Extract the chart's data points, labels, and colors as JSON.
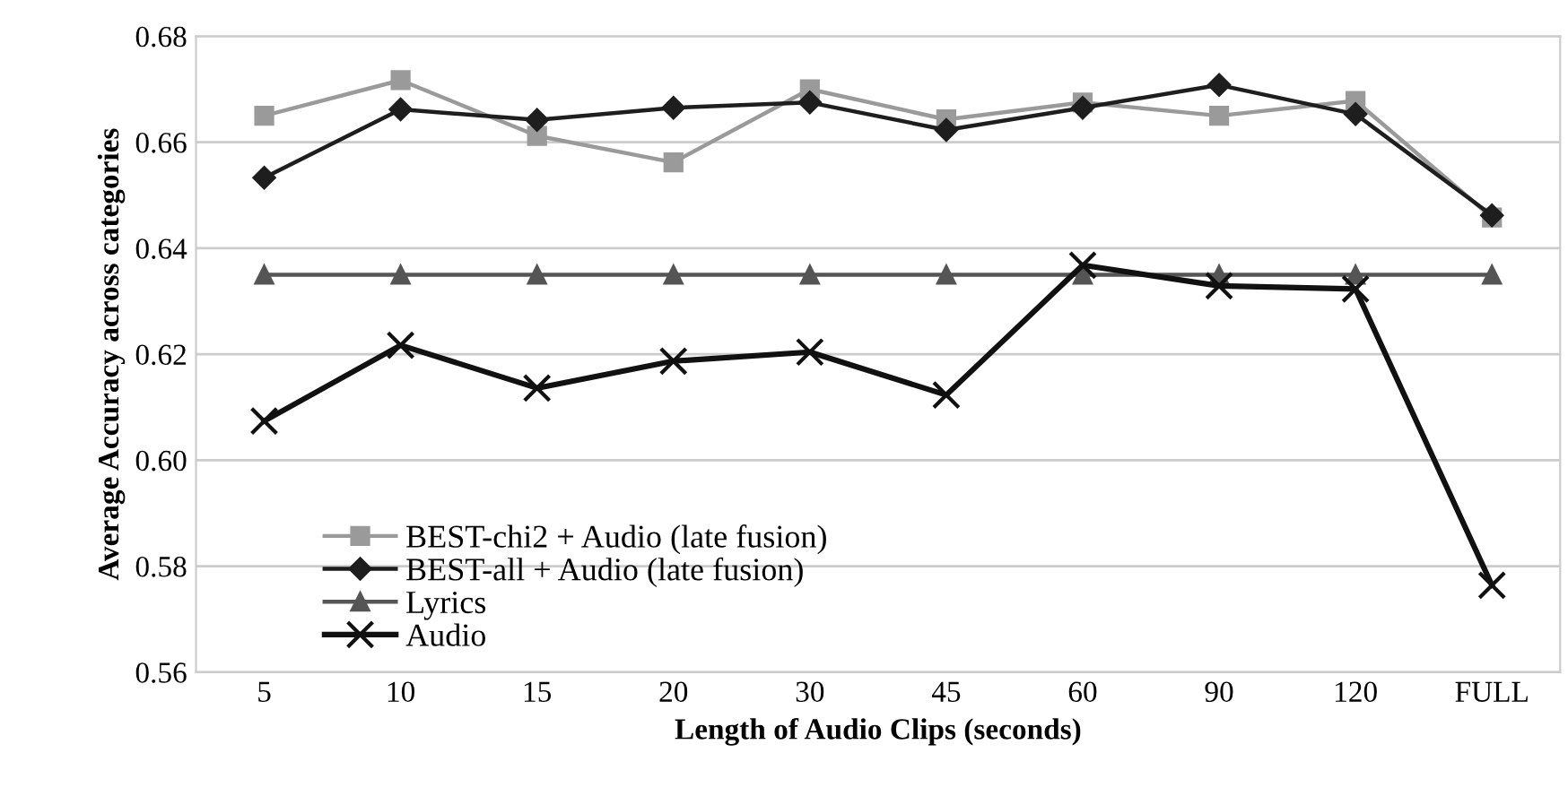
{
  "chart_data": {
    "type": "line",
    "xlabel": "Length of Audio Clips (seconds)",
    "ylabel": "Average Accuracy across categories",
    "categories": [
      "5",
      "10",
      "15",
      "20",
      "30",
      "45",
      "60",
      "90",
      "120",
      "FULL"
    ],
    "ylim": [
      0.56,
      0.68
    ],
    "yticks": [
      {
        "value": 0.56,
        "label": "0.56"
      },
      {
        "value": 0.58,
        "label": "0.58"
      },
      {
        "value": 0.6,
        "label": "0.60"
      },
      {
        "value": 0.62,
        "label": "0.62"
      },
      {
        "value": 0.64,
        "label": "0.64"
      },
      {
        "value": 0.66,
        "label": "0.66"
      },
      {
        "value": 0.68,
        "label": "0.68"
      }
    ],
    "grid": "y",
    "legend": "bottom left",
    "series": [
      {
        "name": "BEST-chi2 + Audio (late fusion)",
        "color": "#9a9a9a",
        "marker": "square",
        "values": [
          0.665,
          0.6717,
          0.6612,
          0.6562,
          0.67,
          0.6643,
          0.6675,
          0.665,
          0.6678,
          0.6458
        ]
      },
      {
        "name": "BEST-all + Audio (late fusion)",
        "color": "#1e1e1e",
        "marker": "diamond",
        "values": [
          0.6533,
          0.6662,
          0.6642,
          0.6665,
          0.6675,
          0.6623,
          0.6665,
          0.6708,
          0.6653,
          0.6462
        ]
      },
      {
        "name": "Lyrics",
        "color": "#555555",
        "marker": "triangle",
        "values": [
          0.635,
          0.635,
          0.635,
          0.635,
          0.635,
          0.635,
          0.635,
          0.635,
          0.635,
          0.635
        ]
      },
      {
        "name": "Audio",
        "color": "#111111",
        "marker": "cross",
        "values": [
          0.6074,
          0.6217,
          0.6136,
          0.6187,
          0.6204,
          0.6123,
          0.6368,
          0.6329,
          0.6323,
          0.5764
        ]
      }
    ]
  }
}
